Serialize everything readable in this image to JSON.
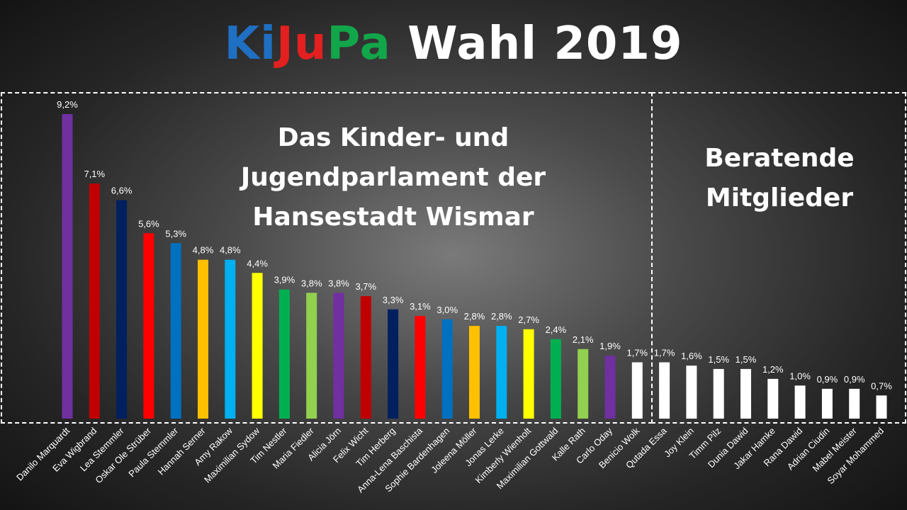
{
  "title": {
    "parts": [
      {
        "text": "Ki",
        "color": "#1f6fc2"
      },
      {
        "text": "Ju",
        "color": "#e41f1f"
      },
      {
        "text": "Pa",
        "color": "#12a64a"
      },
      {
        "text": " Wahl 2019",
        "color": "#ffffff"
      }
    ]
  },
  "heading_main": {
    "line1": "Das Kinder- und",
    "line2": "Jugendparlament der",
    "line3": "Hansestadt Wismar"
  },
  "heading_adv": {
    "line1": "Beratende",
    "line2": "Mitglieder"
  },
  "chart_data": {
    "type": "bar",
    "ylim": [
      0,
      9.2
    ],
    "categories": [
      "Danilo Marquardt",
      "Eva Wigbrand",
      "Lea Stemmler",
      "Oskar Ole Strüber",
      "Paula Stemmler",
      "Hannah Serner",
      "Amy Rakow",
      "Maximilian Sydow",
      "Tim Nestler",
      "Maria Fiedler",
      "Alicia Jörn",
      "Felix Wicht",
      "Tim Herberg",
      "Anna-Lena Baschista",
      "Sophie Bardenhagen",
      "Joleena Möller",
      "Jonas Lerke",
      "Kimberly Wienholt",
      "Maximilian Gottwald",
      "Kalle Rath",
      "Carlo Oday",
      "Benicio Wolk",
      "Qutada Essa",
      "Joy Klein",
      "Timm Pilz",
      "Dunia Dawid",
      "Jakar Hamke",
      "Rana Dawid",
      "Adrian Ciudin",
      "Mabel Meister",
      "Soyar Mohammed"
    ],
    "values": [
      9.2,
      7.1,
      6.6,
      5.6,
      5.3,
      4.8,
      4.8,
      4.4,
      3.9,
      3.8,
      3.8,
      3.7,
      3.3,
      3.1,
      3.0,
      2.8,
      2.8,
      2.7,
      2.4,
      2.1,
      1.9,
      1.7,
      1.7,
      1.6,
      1.5,
      1.5,
      1.2,
      1.0,
      0.9,
      0.9,
      0.7
    ],
    "labels": [
      "9,2%",
      "7,1%",
      "6,6%",
      "5,6%",
      "5,3%",
      "4,8%",
      "4,8%",
      "4,4%",
      "3,9%",
      "3,8%",
      "3,8%",
      "3,7%",
      "3,3%",
      "3,1%",
      "3,0%",
      "2,8%",
      "2,8%",
      "2,7%",
      "2,4%",
      "2,1%",
      "1,9%",
      "1,7%",
      "1,7%",
      "1,6%",
      "1,5%",
      "1,5%",
      "1,2%",
      "1,0%",
      "0,9%",
      "0,9%",
      "0,7%"
    ],
    "colors": [
      "#7030a0",
      "#c00000",
      "#002060",
      "#ff0000",
      "#0070c0",
      "#ffc000",
      "#00b0f0",
      "#ffff00",
      "#00b050",
      "#92d050",
      "#7030a0",
      "#c00000",
      "#002060",
      "#ff0000",
      "#0070c0",
      "#ffc000",
      "#00b0f0",
      "#ffff00",
      "#00b050",
      "#92d050",
      "#7030a0",
      "#ffffff",
      "#ffffff",
      "#ffffff",
      "#ffffff",
      "#ffffff",
      "#ffffff",
      "#ffffff",
      "#ffffff",
      "#ffffff",
      "#ffffff"
    ],
    "groups": [
      "Das Kinder- und Jugendparlament der Hansestadt Wismar",
      "Beratende Mitglieder"
    ]
  }
}
